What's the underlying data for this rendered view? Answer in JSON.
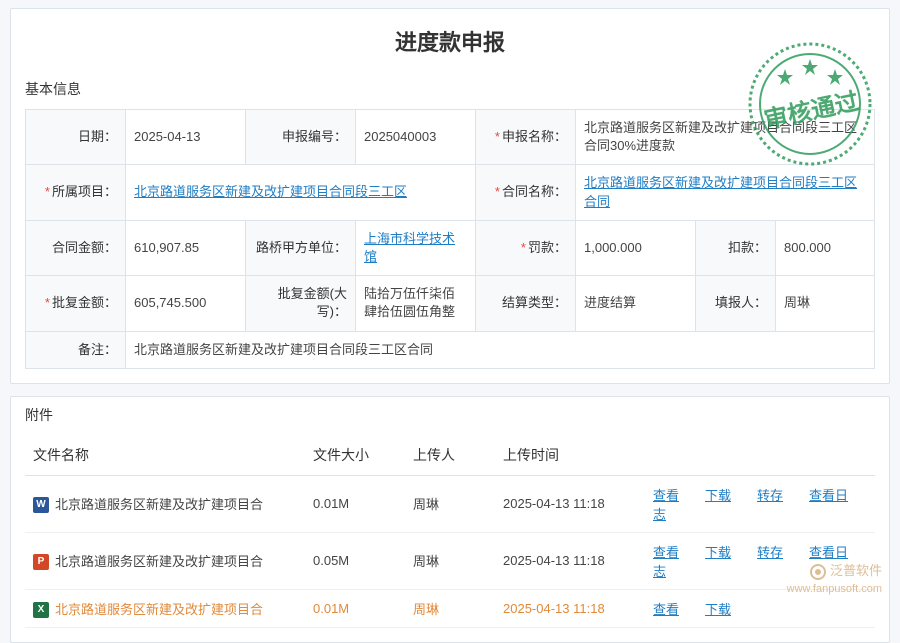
{
  "page": {
    "title": "进度款申报"
  },
  "stamp": {
    "text": "审核通过",
    "color": "#2e9b5a",
    "bg_opacity": 0.85
  },
  "basic": {
    "header": "基本信息",
    "rows": [
      {
        "date_lbl": "日期：",
        "date": "2025-04-13",
        "no_lbl": "申报编号：",
        "no": "2025040003",
        "name_lbl": "申报名称：",
        "name_req": true,
        "name": "北京路道服务区新建及改扩建项目合同段三工区合同30%进度款"
      },
      {
        "proj_lbl": "所属项目：",
        "proj_req": true,
        "proj": "北京路道服务区新建及改扩建项目合同段三工区",
        "contract_lbl": "合同名称：",
        "contract_req": true,
        "contract": "北京路道服务区新建及改扩建项目合同段三工区合同"
      },
      {
        "amount_lbl": "合同金额：",
        "amount": "610,907.85",
        "party_lbl": "路桥甲方单位：",
        "party": "上海市科学技术馆",
        "penalty_lbl": "罚款：",
        "penalty_req": true,
        "penalty": "1,000.000",
        "deduct_lbl": "扣款：",
        "deduct": "800.000"
      },
      {
        "approve_lbl": "批复金额：",
        "approve_req": true,
        "approve": "605,745.500",
        "approve_cn_lbl": "批复金额(大写)：",
        "approve_cn": "陆拾万伍仟柒佰肆拾伍圆伍角整",
        "settle_lbl": "结算类型：",
        "settle": "进度结算",
        "fill_lbl": "填报人：",
        "fill": "周琳"
      },
      {
        "remark_lbl": "备注：",
        "remark": "北京路道服务区新建及改扩建项目合同段三工区合同"
      }
    ]
  },
  "attach": {
    "header": "附件",
    "columns": {
      "name": "文件名称",
      "size": "文件大小",
      "uploader": "上传人",
      "time": "上传时间"
    },
    "rows": [
      {
        "icon": "W",
        "icon_cls": "fi-word",
        "name": "北京路道服务区新建及改扩建项目合",
        "size": "0.01M",
        "uploader": "周琳",
        "time": "2025-04-13 11:18",
        "actions": [
          "查看",
          "下载",
          "转存",
          "查看日志"
        ],
        "highlight": false
      },
      {
        "icon": "P",
        "icon_cls": "fi-ppt",
        "name": "北京路道服务区新建及改扩建项目合",
        "size": "0.05M",
        "uploader": "周琳",
        "time": "2025-04-13 11:18",
        "actions": [
          "查看",
          "下载",
          "转存",
          "查看日志"
        ],
        "highlight": false
      },
      {
        "icon": "X",
        "icon_cls": "fi-xls",
        "name": "北京路道服务区新建及改扩建项目合",
        "size": "0.01M",
        "uploader": "周琳",
        "time": "2025-04-13 11:18",
        "actions": [
          "查看",
          "下载"
        ],
        "highlight": true
      }
    ]
  },
  "watermark": {
    "brand": "泛普软件",
    "url": "www.fanpusoft.com"
  }
}
